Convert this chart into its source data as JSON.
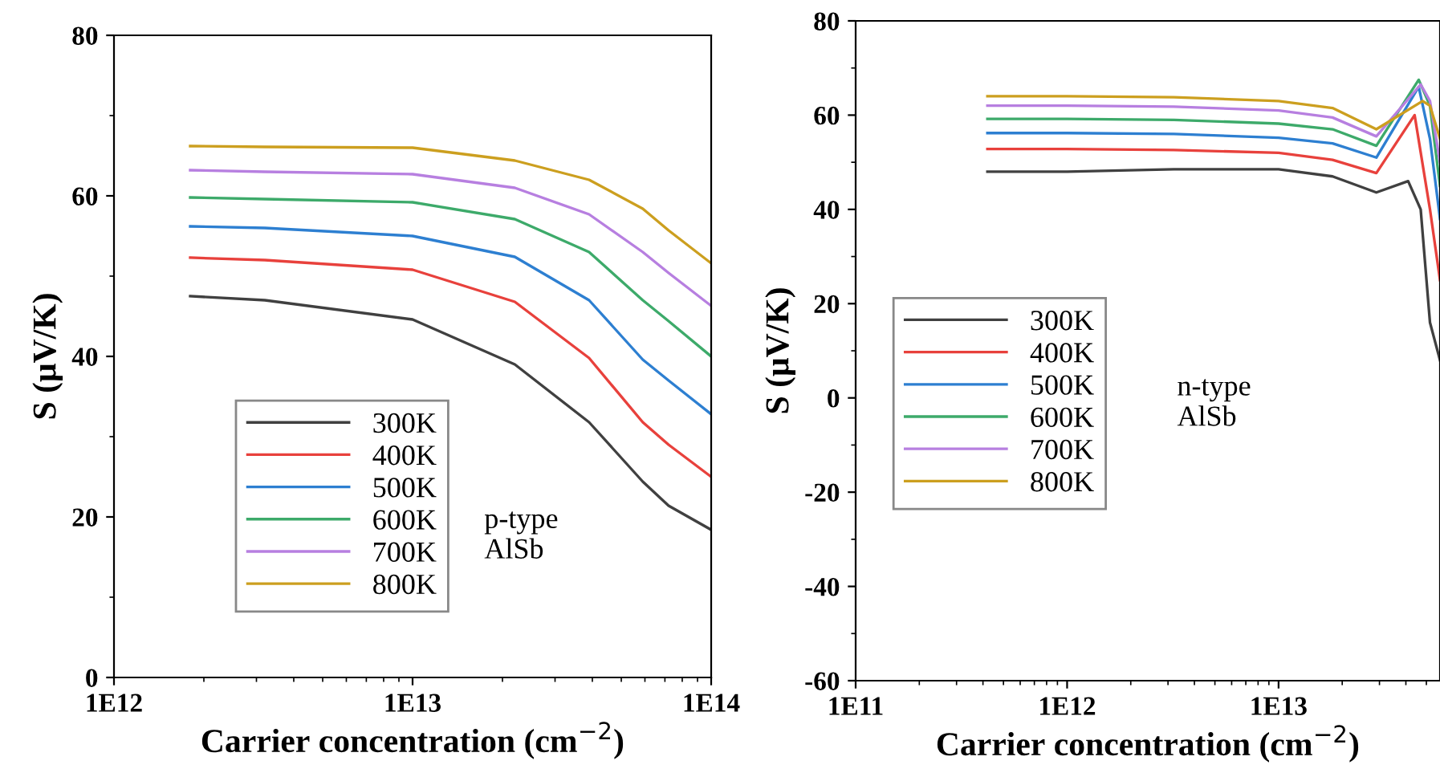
{
  "chart_data": [
    {
      "type": "line",
      "xlabel": "Carrier concentration (cm$^{−2}$)",
      "ylabel": "S (μV/K)",
      "log": "x",
      "xlim": [
        1000000000000.0,
        100000000000000.0
      ],
      "xticks": [
        {
          "value": 1000000000000.0,
          "label": "1E12"
        },
        {
          "value": 10000000000000.0,
          "label": "1E13"
        },
        {
          "value": 100000000000000.0,
          "label": "1E14"
        }
      ],
      "ylim": [
        0,
        80
      ],
      "yticks": [
        0,
        20,
        40,
        60,
        80
      ],
      "legend": "lower left",
      "grid": false,
      "marker": "none",
      "line_style": "solid",
      "annotations": [
        "p-type\nAlSb"
      ],
      "x": [
        1800000000000.0,
        3200000000000.0,
        10000000000000.0,
        22000000000000.0,
        39000000000000.0,
        59000000000000.0,
        72000000000000.0,
        100000000000000.0
      ],
      "series": [
        {
          "name": "300K",
          "color": "#404040",
          "values": [
            47.5,
            47,
            44.6,
            39,
            31.8,
            24.4,
            21.4,
            18.4
          ]
        },
        {
          "name": "400K",
          "color": "#e8413c",
          "values": [
            52.3,
            52,
            50.8,
            46.8,
            39.8,
            31.8,
            29,
            25
          ]
        },
        {
          "name": "500K",
          "color": "#2d7fd1",
          "values": [
            56.2,
            56,
            55,
            52.4,
            47,
            39.6,
            37,
            32.8
          ]
        },
        {
          "name": "600K",
          "color": "#3daa6a",
          "values": [
            59.8,
            59.6,
            59.2,
            57.1,
            53,
            47,
            44.4,
            40
          ]
        },
        {
          "name": "700K",
          "color": "#b77fe0",
          "values": [
            63.2,
            63,
            62.7,
            61,
            57.7,
            53,
            50.4,
            46.3
          ]
        },
        {
          "name": "800K",
          "color": "#cc9f1f",
          "values": [
            66.2,
            66.1,
            66,
            64.4,
            62,
            58.4,
            55.7,
            51.6
          ]
        }
      ]
    },
    {
      "type": "line",
      "xlabel": "Carrier concentration (cm$^{−2}$)",
      "ylabel": "S (μV/K)",
      "log": "x",
      "xlim": [
        100000000000.0,
        58000000000000.0
      ],
      "xticks": [
        {
          "value": 100000000000.0,
          "label": "1E11"
        },
        {
          "value": 1000000000000.0,
          "label": "1E12"
        },
        {
          "value": 10000000000000.0,
          "label": "1E13"
        }
      ],
      "ylim": [
        -60,
        80
      ],
      "yticks": [
        -60,
        -40,
        -20,
        0,
        20,
        40,
        60,
        80
      ],
      "legend": "center left",
      "grid": false,
      "marker": "none",
      "line_style": "solid",
      "annotations": [
        "n-type\nAlSb"
      ],
      "series": [
        {
          "name": "300K",
          "color": "#404040",
          "x": [
            420000000000.0,
            1000000000000.0,
            3200000000000.0,
            10000000000000.0,
            18000000000000.0,
            29000000000000.0,
            41000000000000.0,
            47000000000000.0,
            52000000000000.0,
            58000000000000.0
          ],
          "values": [
            48,
            48,
            48.5,
            48.5,
            47,
            43.6,
            46,
            40,
            16,
            8
          ]
        },
        {
          "name": "400K",
          "color": "#e8413c",
          "x": [
            420000000000.0,
            1000000000000.0,
            3200000000000.0,
            10000000000000.0,
            18000000000000.0,
            29000000000000.0,
            44000000000000.0,
            52000000000000.0,
            58000000000000.0
          ],
          "values": [
            52.8,
            52.8,
            52.6,
            52,
            50.5,
            47.7,
            60,
            40,
            25
          ]
        },
        {
          "name": "500K",
          "color": "#2d7fd1",
          "x": [
            420000000000.0,
            1000000000000.0,
            3200000000000.0,
            10000000000000.0,
            18000000000000.0,
            29000000000000.0,
            46000000000000.0,
            52000000000000.0,
            58000000000000.0
          ],
          "values": [
            56.2,
            56.2,
            56,
            55.2,
            54,
            51,
            66,
            55,
            38
          ]
        },
        {
          "name": "600K",
          "color": "#3daa6a",
          "x": [
            420000000000.0,
            1000000000000.0,
            3200000000000.0,
            10000000000000.0,
            18000000000000.0,
            29000000000000.0,
            46000000000000.0,
            52000000000000.0,
            58000000000000.0
          ],
          "values": [
            59.2,
            59.2,
            59,
            58.2,
            57,
            53.5,
            67.5,
            62,
            45
          ]
        },
        {
          "name": "700K",
          "color": "#b77fe0",
          "x": [
            420000000000.0,
            1000000000000.0,
            3200000000000.0,
            10000000000000.0,
            18000000000000.0,
            29000000000000.0,
            47000000000000.0,
            52000000000000.0,
            58000000000000.0
          ],
          "values": [
            62,
            62,
            61.8,
            61,
            59.5,
            55.5,
            66.5,
            63,
            50
          ]
        },
        {
          "name": "800K",
          "color": "#cc9f1f",
          "x": [
            420000000000.0,
            1000000000000.0,
            3200000000000.0,
            10000000000000.0,
            18000000000000.0,
            29000000000000.0,
            48000000000000.0,
            52000000000000.0,
            58000000000000.0
          ],
          "values": [
            64,
            64,
            63.8,
            63,
            61.5,
            57,
            63,
            62,
            55
          ]
        }
      ]
    }
  ]
}
